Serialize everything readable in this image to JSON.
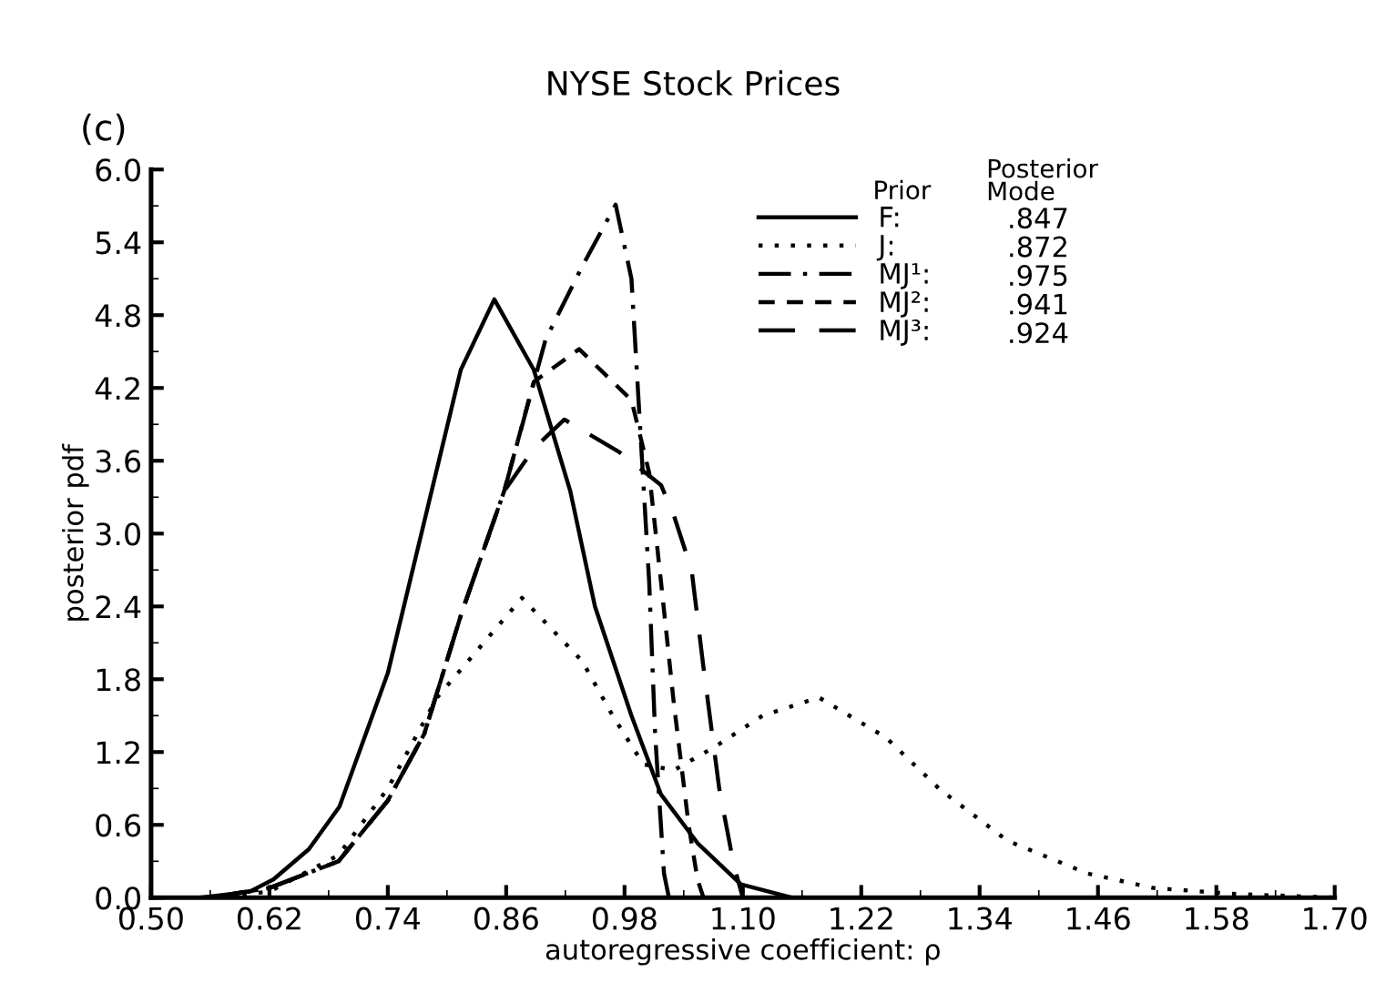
{
  "chart_data": {
    "type": "line",
    "title": "NYSE Stock Prices",
    "xlabel": "autoregressive coefficient: ρ",
    "ylabel": "posterior pdf",
    "legend_title": "Prior",
    "legend": "top right",
    "grid": false,
    "marker": "none",
    "annotations": [
      "(c)",
      "Posterior\nMode",
      ".847",
      ".872",
      ".975",
      ".941",
      ".924"
    ],
    "xlim": [
      0.5,
      1.7
    ],
    "ylim": [
      0.0,
      6.0
    ],
    "xticks": [
      {
        "value": 0.5,
        "label": "0.50"
      },
      {
        "value": 0.62,
        "label": "0.62"
      },
      {
        "value": 0.74,
        "label": "0.74"
      },
      {
        "value": 0.86,
        "label": "0.86"
      },
      {
        "value": 0.98,
        "label": "0.98"
      },
      {
        "value": 1.1,
        "label": "1.10"
      },
      {
        "value": 1.22,
        "label": "1.22"
      },
      {
        "value": 1.34,
        "label": "1.34"
      },
      {
        "value": 1.46,
        "label": "1.46"
      },
      {
        "value": 1.58,
        "label": "1.58"
      },
      {
        "value": 1.7,
        "label": "1.70"
      }
    ],
    "yticks": [
      {
        "value": 0.0,
        "label": "0.0"
      },
      {
        "value": 0.6,
        "label": "0.6"
      },
      {
        "value": 1.2,
        "label": "1.2"
      },
      {
        "value": 1.8,
        "label": "1.8"
      },
      {
        "value": 2.4,
        "label": "2.4"
      },
      {
        "value": 3.0,
        "label": "3.0"
      },
      {
        "value": 3.6,
        "label": "3.6"
      },
      {
        "value": 4.2,
        "label": "4.2"
      },
      {
        "value": 4.8,
        "label": "4.8"
      },
      {
        "value": 5.4,
        "label": "5.4"
      },
      {
        "value": 6.0,
        "label": "6.0"
      }
    ],
    "series": [
      {
        "name": "F:",
        "color": "#000000",
        "line_style": "solid",
        "x": [
          0.55,
          0.6,
          0.624,
          0.66,
          0.691,
          0.74,
          0.777,
          0.814,
          0.848,
          0.888,
          0.925,
          0.95,
          0.987,
          1.017,
          1.054,
          1.098,
          1.15
        ],
        "values": [
          0.0,
          0.05,
          0.15,
          0.4,
          0.75,
          1.85,
          3.1,
          4.35,
          4.93,
          4.35,
          3.35,
          2.4,
          1.5,
          0.85,
          0.45,
          0.11,
          0.0
        ]
      },
      {
        "name": "J:",
        "color": "#000000",
        "line_style": "dotted",
        "x": [
          0.56,
          0.62,
          0.69,
          0.74,
          0.79,
          0.876,
          0.937,
          0.968,
          0.999,
          1.03,
          1.073,
          1.12,
          1.177,
          1.245,
          1.3,
          1.368,
          1.449,
          1.516,
          1.6,
          1.7
        ],
        "values": [
          0.0,
          0.05,
          0.35,
          0.9,
          1.65,
          2.47,
          1.95,
          1.5,
          1.1,
          1.05,
          1.25,
          1.5,
          1.65,
          1.32,
          0.89,
          0.47,
          0.2,
          0.08,
          0.03,
          0.0
        ]
      },
      {
        "name": "MJ¹:",
        "color": "#000000",
        "line_style": "dashdot",
        "x": [
          0.56,
          0.62,
          0.69,
          0.74,
          0.777,
          0.815,
          0.858,
          0.9,
          0.937,
          0.971,
          0.987,
          0.996,
          1.005,
          1.011,
          1.02,
          1.025
        ],
        "values": [
          0.0,
          0.08,
          0.3,
          0.8,
          1.35,
          2.35,
          3.35,
          4.6,
          5.2,
          5.71,
          5.1,
          3.85,
          2.6,
          1.35,
          0.2,
          0.0
        ]
      },
      {
        "name": "MJ²:",
        "color": "#000000",
        "line_style": "dashed",
        "x": [
          0.56,
          0.62,
          0.69,
          0.74,
          0.777,
          0.815,
          0.858,
          0.888,
          0.934,
          0.987,
          1.005,
          1.017,
          1.03,
          1.045,
          1.054,
          1.06
        ],
        "values": [
          0.0,
          0.08,
          0.3,
          0.8,
          1.35,
          2.35,
          3.35,
          4.25,
          4.52,
          4.1,
          3.5,
          2.6,
          1.6,
          0.6,
          0.15,
          0.0
        ]
      },
      {
        "name": "MJ³:",
        "color": "#000000",
        "line_style": "longdash",
        "x": [
          0.56,
          0.62,
          0.69,
          0.74,
          0.777,
          0.815,
          0.858,
          0.888,
          0.919,
          0.975,
          1.017,
          1.03,
          1.048,
          1.06,
          1.076,
          1.091,
          1.1
        ],
        "values": [
          0.0,
          0.08,
          0.3,
          0.8,
          1.35,
          2.35,
          3.35,
          3.7,
          3.94,
          3.67,
          3.4,
          3.15,
          2.7,
          1.9,
          0.9,
          0.26,
          0.0
        ]
      }
    ]
  }
}
